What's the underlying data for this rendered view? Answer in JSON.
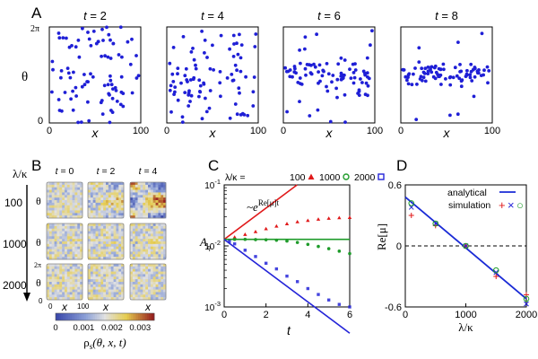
{
  "panel_labels": {
    "A": "A",
    "B": "B",
    "C": "C",
    "D": "D"
  },
  "chart_data": [
    {
      "type": "scatter",
      "panel": "A",
      "xlabel": "x",
      "ylabel": "θ",
      "xlim": [
        0,
        100
      ],
      "ylim": [
        0,
        6.2832
      ],
      "xticks": [
        "0",
        "100"
      ],
      "yticks": [
        "0",
        "2π"
      ],
      "point_color": "#1f1fd6",
      "subplots": [
        {
          "title": "t = 2",
          "t_label": "t",
          "t_value": "= 2",
          "spread": 1.0
        },
        {
          "title": "t = 4",
          "t_label": "t",
          "t_value": "= 4",
          "spread": 0.75
        },
        {
          "title": "t = 6",
          "t_label": "t",
          "t_value": "= 6",
          "spread": 0.4
        },
        {
          "title": "t = 8",
          "t_label": "t",
          "t_value": "= 8",
          "spread": 0.22
        }
      ]
    },
    {
      "type": "heatmap",
      "panel": "B",
      "row_header": "λ/κ",
      "columns": [
        {
          "label": "t = 0",
          "t_label": "t",
          "t_value": "= 0"
        },
        {
          "label": "t = 2",
          "t_label": "t",
          "t_value": "= 2"
        },
        {
          "label": "t = 4",
          "t_label": "t",
          "t_value": "= 4"
        }
      ],
      "rows": [
        "100",
        "1000",
        "2000"
      ],
      "row_structure": [
        [
          0.1,
          0.35,
          0.8
        ],
        [
          0.05,
          0.08,
          0.12
        ],
        [
          0.02,
          0.03,
          0.04
        ]
      ],
      "ylabel": "θ",
      "xlabel": "x",
      "bottom_ticks": {
        "y_top": "2π",
        "y_bottom": "0",
        "x_left": "0",
        "x_right": "100"
      },
      "colorbar": {
        "ticks": [
          "0",
          "0.001",
          "0.002",
          "0.003"
        ],
        "range": [
          0,
          0.0035
        ]
      },
      "colorbar_label": {
        "main": "ρ",
        "sub": "s",
        "args": "(θ, x, t)"
      },
      "arrow_direction": "down"
    },
    {
      "type": "line",
      "panel": "C",
      "xlabel": "t",
      "ylabel_main": "A",
      "ylabel_sub": "η",
      "xlim": [
        0,
        6
      ],
      "ylim_log10": [
        -3,
        -1
      ],
      "xticks": [
        0,
        2,
        4,
        6
      ],
      "yticks": [
        {
          "base": "10",
          "exp": "-3",
          "v": -3
        },
        {
          "base": "10",
          "exp": "-2",
          "v": -2
        },
        {
          "base": "10",
          "exp": "-1",
          "v": -1
        }
      ],
      "legend_prefix": "λ/κ = ",
      "annotation": {
        "prefix": "~e",
        "exponent": "Re[μ]t"
      },
      "series": [
        {
          "name": "100",
          "marker": "triangle",
          "color": "#e0191a",
          "growth_rate": 0.59,
          "points": [
            [
              0.5,
              0.014
            ],
            [
              1,
              0.0155
            ],
            [
              1.5,
              0.0172
            ],
            [
              2,
              0.0192
            ],
            [
              2.5,
              0.0212
            ],
            [
              3,
              0.0232
            ],
            [
              3.5,
              0.025
            ],
            [
              4,
              0.0263
            ],
            [
              4.5,
              0.0275
            ],
            [
              5,
              0.0285
            ],
            [
              5.5,
              0.0291
            ],
            [
              6,
              0.0294
            ]
          ]
        },
        {
          "name": "1000",
          "marker": "circle",
          "color": "#1e9b2a",
          "growth_rate": 0.0,
          "points": [
            [
              0.5,
              0.0128
            ],
            [
              1,
              0.0128
            ],
            [
              1.5,
              0.0127
            ],
            [
              2,
              0.0126
            ],
            [
              2.5,
              0.0124
            ],
            [
              3,
              0.012
            ],
            [
              3.5,
              0.0114
            ],
            [
              4,
              0.0106
            ],
            [
              4.5,
              0.0098
            ],
            [
              5,
              0.009
            ],
            [
              5.5,
              0.0082
            ],
            [
              6,
              0.0075
            ]
          ]
        },
        {
          "name": "2000",
          "marker": "square",
          "color": "#2424d8",
          "growth_rate": -0.59,
          "points": [
            [
              0.25,
              0.0118
            ],
            [
              0.5,
              0.0108
            ],
            [
              1,
              0.0085
            ],
            [
              1.5,
              0.0067
            ],
            [
              2,
              0.0052
            ],
            [
              2.5,
              0.0042
            ],
            [
              3,
              0.0032
            ],
            [
              3.5,
              0.0026
            ],
            [
              4,
              0.002
            ],
            [
              4.5,
              0.0016
            ],
            [
              5,
              0.0013
            ],
            [
              5.5,
              0.0011
            ],
            [
              6,
              0.001
            ]
          ]
        }
      ]
    },
    {
      "type": "scatter",
      "panel": "D",
      "xlabel": "λ/κ",
      "ylabel": "Re[μ]",
      "xlim": [
        0,
        2000
      ],
      "ylim": [
        -0.6,
        0.6
      ],
      "xticks": [
        0,
        1000,
        2000
      ],
      "yticks": [
        "0.6",
        "0",
        "-0.6"
      ],
      "ytick_values": [
        0.6,
        0,
        -0.6
      ],
      "analytical": {
        "label": "analytical",
        "color": "#1a2bd6",
        "y_at_0": 0.48,
        "y_at_2000": -0.52
      },
      "simulation": {
        "label": "simulation",
        "markers": [
          {
            "symbol": "+",
            "color": "#e0191a"
          },
          {
            "symbol": "×",
            "color": "#2424d8"
          },
          {
            "symbol": "○",
            "color": "#1e9b2a"
          }
        ]
      },
      "points": [
        {
          "x": 100,
          "y": 0.38,
          "plus": 0.3,
          "cross": 0.38,
          "circle": 0.42
        },
        {
          "x": 500,
          "y": 0.21,
          "plus": 0.2,
          "cross": 0.22,
          "circle": 0.22
        },
        {
          "x": 1000,
          "y": 0.0,
          "plus": 0.0,
          "cross": 0.0,
          "circle": 0.0
        },
        {
          "x": 1500,
          "y": -0.26,
          "plus": -0.3,
          "cross": -0.26,
          "circle": -0.24
        },
        {
          "x": 2000,
          "y": -0.52,
          "plus": -0.48,
          "cross": -0.57,
          "circle": -0.52
        }
      ]
    }
  ]
}
